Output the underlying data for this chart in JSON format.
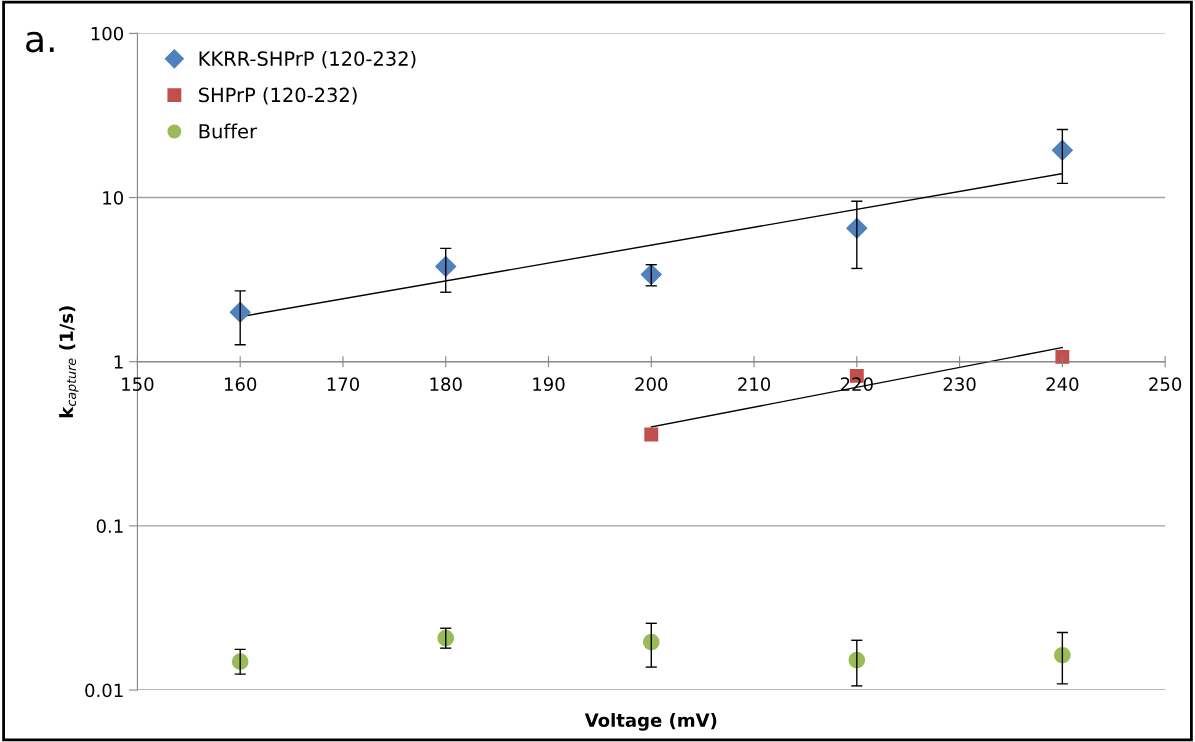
{
  "chart_data": {
    "type": "scatter",
    "xlabel": "Voltage (mV)",
    "ylabel": "k$_{capture}$ (1/s)",
    "annotations": [
      "a."
    ],
    "log": "y",
    "grid": "y",
    "legend": "top left",
    "xlim": [
      150,
      250
    ],
    "xticks": [
      150,
      160,
      170,
      180,
      190,
      200,
      210,
      220,
      230,
      240,
      250
    ],
    "ylim": [
      0.01,
      100
    ],
    "yticks": [
      0.01,
      0.1,
      1,
      10,
      100
    ],
    "series": [
      {
        "name": "KKRR-SHPrP (120-232)",
        "color": "#4f81bd",
        "marker": "diamond",
        "x": [
          160,
          180,
          200,
          220,
          240
        ],
        "values": [
          2.0,
          3.8,
          3.4,
          6.5,
          19.4
        ],
        "errors": [
          [
            1.27,
            2.7
          ],
          [
            2.65,
            4.9
          ],
          [
            2.9,
            3.9
          ],
          [
            3.7,
            9.5
          ],
          [
            12.2,
            26
          ]
        ]
      },
      {
        "name": "SHPrP (120-232)",
        "color": "#c0504d",
        "marker": "square",
        "x": [
          200,
          220,
          240
        ],
        "values": [
          0.36,
          0.82,
          1.07
        ]
      },
      {
        "name": "Buffer",
        "color": "#9bbb59",
        "marker": "circle",
        "x": [
          160,
          180,
          200,
          220,
          240
        ],
        "values": [
          0.0149,
          0.0207,
          0.0196,
          0.0152,
          0.0163
        ],
        "errors": [
          [
            0.0125,
            0.0177
          ],
          [
            0.018,
            0.0238
          ],
          [
            0.0138,
            0.0255
          ],
          [
            0.0106,
            0.0201
          ],
          [
            0.0109,
            0.0224
          ]
        ]
      },
      {
        "type": "line",
        "color": "#000000",
        "marker": "none",
        "x": [
          160,
          240
        ],
        "values": [
          1.88,
          14.0
        ]
      },
      {
        "type": "line",
        "color": "#000000",
        "marker": "none",
        "x": [
          200,
          240
        ],
        "values": [
          0.4,
          1.22
        ]
      }
    ]
  }
}
